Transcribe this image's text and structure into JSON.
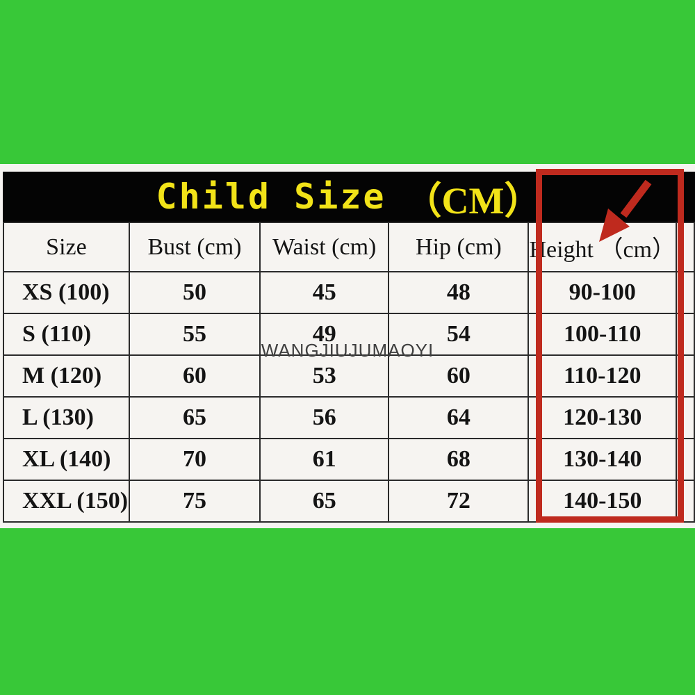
{
  "colors": {
    "background_green": "#38c838",
    "accent_red": "#bf2a1e",
    "title_yellow": "#f2e318",
    "paper_white": "#f6f4f1"
  },
  "watermark": "WANGJIUJUMAOYI",
  "table": {
    "title_main": "Child Size",
    "title_unit": "（CM）",
    "columns": [
      "Size",
      "Bust (cm)",
      "Waist (cm)",
      "Hip (cm)",
      "Height （cm）"
    ],
    "rows": [
      {
        "size": "XS (100)",
        "bust": "50",
        "waist": "45",
        "hip": "48",
        "height": "90-100"
      },
      {
        "size": "S (110)",
        "bust": "55",
        "waist": "49",
        "hip": "54",
        "height": "100-110"
      },
      {
        "size": "M (120)",
        "bust": "60",
        "waist": "53",
        "hip": "60",
        "height": "110-120"
      },
      {
        "size": "L (130)",
        "bust": "65",
        "waist": "56",
        "hip": "64",
        "height": "120-130"
      },
      {
        "size": "XL (140)",
        "bust": "70",
        "waist": "61",
        "hip": "68",
        "height": "130-140"
      },
      {
        "size": "XXL (150)",
        "bust": "75",
        "waist": "65",
        "hip": "72",
        "height": "140-150"
      }
    ],
    "highlighted_column": "Height （cm）"
  },
  "chart_data": {
    "type": "table",
    "title": "Child Size （CM）",
    "columns": [
      "Size",
      "Bust (cm)",
      "Waist (cm)",
      "Hip (cm)",
      "Height （cm）"
    ],
    "rows": [
      [
        "XS (100)",
        50,
        45,
        48,
        "90-100"
      ],
      [
        "S (110)",
        55,
        49,
        54,
        "100-110"
      ],
      [
        "M (120)",
        60,
        53,
        60,
        "110-120"
      ],
      [
        "L (130)",
        65,
        56,
        64,
        "120-130"
      ],
      [
        "XL (140)",
        70,
        61,
        68,
        "130-140"
      ],
      [
        "XXL (150)",
        75,
        65,
        72,
        "140-150"
      ]
    ],
    "annotations": "Red rectangle with down-left arrow highlighting the Height （cm） column"
  }
}
